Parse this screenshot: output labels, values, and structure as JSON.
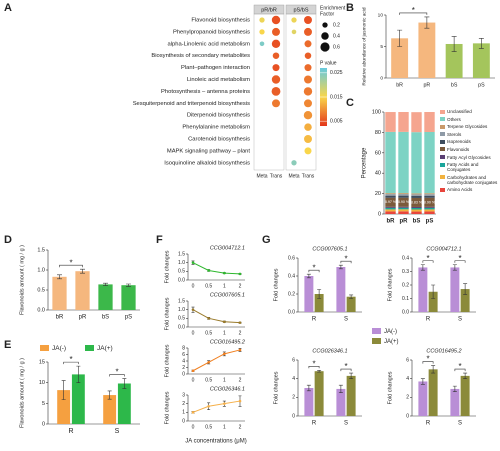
{
  "chart_data": [
    {
      "panel": "A",
      "type": "dot",
      "categories": [
        "Flavonoid biosynthesis",
        "Phenylpropanoid biosynthesis",
        "alpha-Linolenic acid metabolism",
        "Biosynthesis of secondary metabolites",
        "Plant–pathogen interaction",
        "Linoleic acid metabolism",
        "Photosynthesis – antenna proteins",
        "Sesquiterpenoid and triterpenoid biosynthesis",
        "Diterpenoid biosynthesis",
        "Phenylalanine metabolism",
        "Carotenoid biosynthesis",
        "MAPK signaling pathway – plant",
        "Isoquinoline alkaloid biosynthesis"
      ],
      "facets": [
        {
          "name": "pR/bR",
          "columns": [
            {
              "name": "Meta",
              "values": [
                0.2,
                0.2,
                0.15,
                null,
                null,
                null,
                null,
                null,
                null,
                null,
                null,
                null,
                null
              ],
              "pvalues": [
                0.016,
                0.015,
                0.025,
                null,
                null,
                null,
                null,
                null,
                null,
                null,
                null,
                null,
                null
              ]
            },
            {
              "name": "Trans",
              "values": [
                0.5,
                0.45,
                0.5,
                0.3,
                0.35,
                0.5,
                0.55,
                0.45,
                null,
                null,
                null,
                null,
                null
              ],
              "pvalues": [
                0.005,
                0.006,
                0.005,
                0.006,
                0.005,
                0.006,
                0.006,
                0.008,
                null,
                null,
                null,
                null,
                null
              ]
            }
          ]
        },
        {
          "name": "pS/bS",
          "columns": [
            {
              "name": "Meta",
              "values": [
                0.2,
                0.15,
                null,
                null,
                null,
                null,
                null,
                null,
                null,
                null,
                null,
                null,
                0.2
              ],
              "pvalues": [
                0.016,
                0.017,
                null,
                null,
                null,
                null,
                null,
                null,
                null,
                null,
                null,
                null,
                0.024
              ]
            },
            {
              "name": "Trans",
              "values": [
                0.45,
                0.45,
                0.35,
                0.3,
                0.35,
                0.45,
                0.5,
                0.45,
                0.5,
                0.4,
                0.45,
                0.35,
                null
              ],
              "pvalues": [
                0.005,
                0.006,
                0.007,
                0.006,
                0.007,
                0.008,
                0.008,
                0.009,
                0.01,
                0.012,
                0.013,
                0.015,
                null
              ]
            }
          ]
        }
      ],
      "size_legend": {
        "title_lines": [
          "Enrichment",
          "Factor"
        ],
        "values": [
          0.2,
          0.4,
          0.6
        ]
      },
      "color_legend": {
        "title": "P value",
        "lim": [
          0.003,
          0.027
        ],
        "ticks": [
          0.025,
          0.015,
          0.005
        ],
        "colors": [
          "#e4361b",
          "#f9d64b",
          "#66c9de"
        ]
      }
    },
    {
      "panel": "B",
      "type": "bar",
      "ylabel": "Relative abundance of jasmonic acid",
      "categories": [
        "bR",
        "pR",
        "bS",
        "pS"
      ],
      "values": [
        6.3,
        8.8,
        5.4,
        5.5
      ],
      "errors": [
        1.3,
        0.9,
        1.2,
        0.8
      ],
      "colors": [
        "#f5b77e",
        "#f5b77e",
        "#a4c55c",
        "#a4c55c"
      ],
      "ylim": [
        0,
        10
      ],
      "yticks": [
        0,
        5,
        10
      ],
      "significance": [
        {
          "between": [
            "bR",
            "pR"
          ],
          "label": "*"
        }
      ]
    },
    {
      "panel": "C",
      "type": "stacked-bar",
      "ylabel": "Percentage",
      "categories": [
        "bR",
        "pR",
        "bS",
        "pS"
      ],
      "series": [
        {
          "name": "Amino Acids",
          "color": "#e8453c",
          "values": [
            2.5,
            2.6,
            2.4,
            2.5
          ]
        },
        {
          "name": "Carbohydrates and carbohydrate conjugates",
          "color": "#f2b23e",
          "values": [
            2,
            2,
            2,
            2
          ]
        },
        {
          "name": "Fatty Acids and Conjugates",
          "color": "#1aa59a",
          "values": [
            1.5,
            1.5,
            1.5,
            1.5
          ]
        },
        {
          "name": "Fatty Acyl Glycosides",
          "color": "#5b3f73",
          "values": [
            1,
            1,
            1,
            1
          ]
        },
        {
          "name": "Flavonoids",
          "color": "#7b5a3c",
          "values": [
            8.97,
            8.9,
            8.83,
            8.9
          ],
          "value_labels": [
            "8.97 %",
            "8.90 %",
            "8.83 %",
            "8.90 %"
          ]
        },
        {
          "name": "Isoprenoids",
          "color": "#3f4d5e",
          "values": [
            2,
            2,
            2,
            2
          ]
        },
        {
          "name": "Sterols",
          "color": "#8e9aa6",
          "values": [
            1.5,
            1.5,
            1.5,
            1.5
          ]
        },
        {
          "name": "Terpene Glycosides",
          "color": "#c9996a",
          "values": [
            1,
            1,
            1,
            1
          ]
        },
        {
          "name": "Others",
          "color": "#7dd3c4",
          "values": [
            60,
            60,
            60,
            60
          ]
        },
        {
          "name": "Unclassified",
          "color": "#f5a58f",
          "values": [
            19.5,
            19.5,
            19.6,
            19.6
          ]
        }
      ],
      "ylim": [
        0,
        100
      ],
      "yticks": [
        0,
        20,
        40,
        60,
        80,
        100
      ]
    },
    {
      "panel": "D",
      "type": "bar",
      "ylabel": "Flavonoids amount ( mg / g )",
      "categories": [
        "bR",
        "pR",
        "bS",
        "pS"
      ],
      "values": [
        0.83,
        0.97,
        0.64,
        0.62
      ],
      "errors": [
        0.05,
        0.05,
        0.03,
        0.03
      ],
      "colors": [
        "#f5b77e",
        "#f5b77e",
        "#3cb84a",
        "#3cb84a"
      ],
      "ylim": [
        0,
        1.5
      ],
      "yticks": [
        {
          "value": 0,
          "label": "0.0"
        },
        {
          "value": 0.5,
          "label": "0.5"
        },
        {
          "value": 1,
          "label": "1.0"
        },
        {
          "value": 1.5,
          "label": "1.5"
        }
      ],
      "significance": [
        {
          "between": [
            "bR",
            "pR"
          ],
          "label": "*"
        }
      ]
    },
    {
      "panel": "E",
      "type": "grouped-bar",
      "ylabel": "Flavonoids amount ( mg / g )",
      "categories": [
        "R",
        "S"
      ],
      "series": [
        {
          "name": "JA(-)",
          "color": "#f5a040",
          "values": [
            8.2,
            7.0
          ],
          "errors": [
            2.3,
            1.0
          ]
        },
        {
          "name": "JA(+)",
          "color": "#2db84a",
          "values": [
            12.0,
            9.8
          ],
          "errors": [
            2.0,
            1.2
          ]
        }
      ],
      "ylim": [
        0,
        15
      ],
      "yticks": [
        0,
        5,
        10,
        15
      ],
      "significance": [
        {
          "category": "R",
          "label": "*"
        },
        {
          "category": "S",
          "label": "*"
        }
      ]
    },
    {
      "panel": "F",
      "type": "line-panels",
      "ylabel": "Fold changes",
      "xlabel": "JA concentrations (μM)",
      "categories": [
        "0",
        "0.5",
        "1",
        "2"
      ],
      "panels": [
        {
          "title": "CCG004712.1",
          "color": "#2eb82e",
          "values": [
            1.0,
            0.55,
            0.4,
            0.35
          ],
          "errors": [
            0.1,
            0.05,
            0.03,
            0.03
          ],
          "ylim": [
            0,
            1.5
          ],
          "yticks": [
            {
              "value": 0,
              "label": "0.0"
            },
            {
              "value": 0.5,
              "label": "0.5"
            },
            {
              "value": 1,
              "label": "1.0"
            },
            {
              "value": 1.5,
              "label": "1.5"
            }
          ]
        },
        {
          "title": "CCG007605.1",
          "color": "#9a7a2a",
          "values": [
            1.0,
            0.5,
            0.3,
            0.25
          ],
          "errors": [
            0.15,
            0.06,
            0.04,
            0.03
          ],
          "ylim": [
            0,
            1.5
          ],
          "yticks": [
            {
              "value": 0,
              "label": "0.0"
            },
            {
              "value": 0.5,
              "label": "0.5"
            },
            {
              "value": 1,
              "label": "1.0"
            },
            {
              "value": 1.5,
              "label": "1.5"
            }
          ]
        },
        {
          "title": "CCG016495.2",
          "color": "#f07f1f",
          "values": [
            1.0,
            3.6,
            6.2,
            7.4
          ],
          "errors": [
            0.2,
            0.5,
            0.6,
            0.5
          ],
          "ylim": [
            0,
            8
          ],
          "yticks": [
            0,
            2,
            4,
            6,
            8
          ]
        },
        {
          "title": "CCG026346.1",
          "color": "#f5b04a",
          "values": [
            1.0,
            1.7,
            2.0,
            2.3
          ],
          "errors": [
            0.1,
            0.4,
            0.3,
            0.6
          ],
          "ylim": [
            0,
            3
          ],
          "yticks": [
            0,
            1,
            2,
            3
          ]
        }
      ]
    },
    {
      "panel": "G",
      "type": "grouped-bar-panels",
      "ylabel": "Fold changes",
      "categories": [
        "R",
        "S"
      ],
      "series": [
        {
          "name": "JA(-)",
          "color": "#b98ed6"
        },
        {
          "name": "JA(+)",
          "color": "#8b8a3a"
        }
      ],
      "panels": [
        {
          "title": "CCG007605.1",
          "values": [
            [
              0.4,
              0.5
            ],
            [
              0.2,
              0.17
            ]
          ],
          "errors": [
            [
              0.02,
              0.02
            ],
            [
              0.05,
              0.02
            ]
          ],
          "ylim": [
            0,
            0.6
          ],
          "yticks": [
            {
              "value": 0,
              "label": "0.0"
            },
            0.2,
            0.4,
            0.6
          ],
          "significance": [
            {
              "category": "R",
              "label": "*"
            },
            {
              "category": "S",
              "label": "*"
            }
          ]
        },
        {
          "title": "CCG004712.1",
          "values": [
            [
              0.33,
              0.33
            ],
            [
              0.15,
              0.17
            ]
          ],
          "errors": [
            [
              0.02,
              0.02
            ],
            [
              0.05,
              0.04
            ]
          ],
          "ylim": [
            0,
            0.4
          ],
          "yticks": [
            {
              "value": 0,
              "label": "0.0"
            },
            0.1,
            0.2,
            0.3,
            0.4
          ],
          "significance": [
            {
              "category": "R",
              "label": "*"
            },
            {
              "category": "S",
              "label": "*"
            }
          ]
        },
        {
          "title": "CCG026346.1",
          "values": [
            [
              3.0,
              2.9
            ],
            [
              4.8,
              4.3
            ]
          ],
          "errors": [
            [
              0.3,
              0.4
            ],
            [
              0.1,
              0.3
            ]
          ],
          "ylim": [
            0,
            6
          ],
          "yticks": [
            0,
            2,
            4,
            6
          ],
          "significance": [
            {
              "category": "R",
              "label": "*"
            },
            {
              "category": "S",
              "label": "*"
            }
          ]
        },
        {
          "title": "CCG016495.2",
          "values": [
            [
              3.7,
              2.9
            ],
            [
              5.0,
              4.3
            ]
          ],
          "errors": [
            [
              0.3,
              0.3
            ],
            [
              0.4,
              0.3
            ]
          ],
          "ylim": [
            0,
            6
          ],
          "yticks": [
            0,
            2,
            4,
            6
          ],
          "significance": [
            {
              "category": "R",
              "label": "*"
            },
            {
              "category": "S",
              "label": "*"
            }
          ]
        }
      ]
    }
  ]
}
